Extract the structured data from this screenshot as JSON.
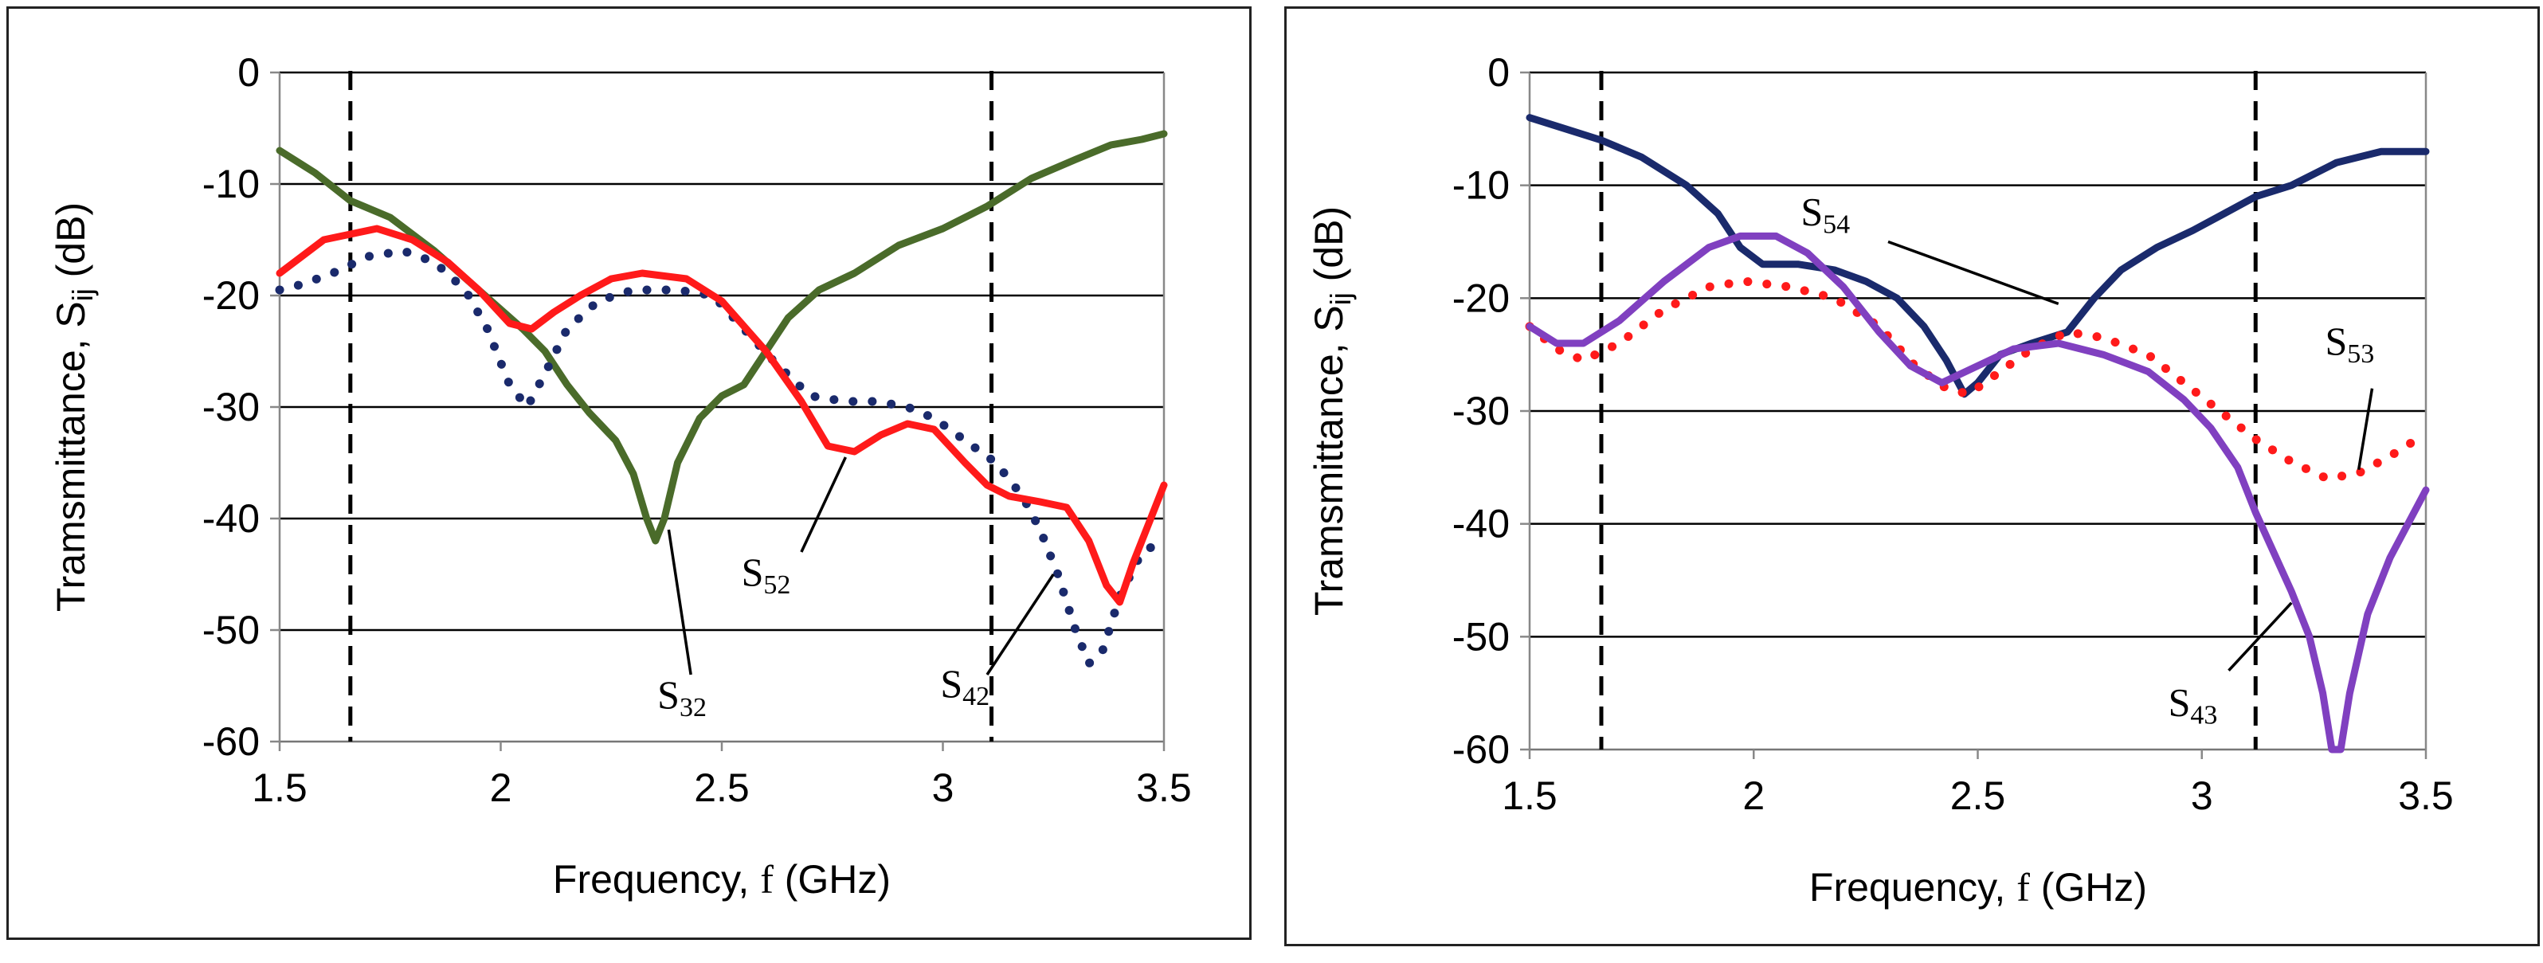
{
  "chart_data": [
    {
      "type": "line",
      "xlabel": "Frequency,  f (GHz)",
      "xlabel_prefix": "Frequency,  ",
      "xlabel_var": "f",
      "xlabel_unit": " (GHz)",
      "ylabel_prefix": "Tramsmittance, S",
      "ylabel_sub": "ij",
      "ylabel_unit": " (dB)",
      "xlim": [
        1.5,
        3.5
      ],
      "ylim": [
        -60,
        0
      ],
      "xticks": [
        1.5,
        2,
        2.5,
        3,
        3.5
      ],
      "xtick_labels": [
        "1.5",
        "2",
        "2.5",
        "3",
        "3.5"
      ],
      "yticks": [
        0,
        -10,
        -20,
        -30,
        -40,
        -50,
        -60
      ],
      "ytick_labels": [
        "0",
        "-10",
        "-20",
        "-30",
        "-40",
        "-50",
        "-60"
      ],
      "grid": "horizontal",
      "vlines": [
        1.66,
        3.11
      ],
      "series": [
        {
          "name": "S32",
          "base": "S",
          "sub": "32",
          "color": "#4a6b2a",
          "style": "solid",
          "points": [
            [
              1.5,
              -7
            ],
            [
              1.58,
              -9
            ],
            [
              1.66,
              -11.5
            ],
            [
              1.75,
              -13
            ],
            [
              1.85,
              -16
            ],
            [
              1.95,
              -19.5
            ],
            [
              2.05,
              -23
            ],
            [
              2.1,
              -25
            ],
            [
              2.15,
              -28
            ],
            [
              2.2,
              -30.5
            ],
            [
              2.26,
              -33
            ],
            [
              2.3,
              -36
            ],
            [
              2.33,
              -40
            ],
            [
              2.35,
              -42
            ],
            [
              2.37,
              -40
            ],
            [
              2.4,
              -35
            ],
            [
              2.45,
              -31
            ],
            [
              2.5,
              -29
            ],
            [
              2.55,
              -28
            ],
            [
              2.6,
              -25
            ],
            [
              2.65,
              -22
            ],
            [
              2.72,
              -19.5
            ],
            [
              2.8,
              -18
            ],
            [
              2.9,
              -15.5
            ],
            [
              3.0,
              -14
            ],
            [
              3.1,
              -12
            ],
            [
              3.2,
              -9.5
            ],
            [
              3.3,
              -7.8
            ],
            [
              3.38,
              -6.5
            ],
            [
              3.45,
              -6
            ],
            [
              3.5,
              -5.5
            ]
          ],
          "label_at": [
            2.41,
            -57
          ],
          "leader": [
            [
              2.43,
              -54
            ],
            [
              2.38,
              -41
            ]
          ]
        },
        {
          "name": "S42",
          "base": "S",
          "sub": "42",
          "color": "#1a2a6c",
          "style": "dotted",
          "points": [
            [
              1.5,
              -19.5
            ],
            [
              1.55,
              -19
            ],
            [
              1.62,
              -18
            ],
            [
              1.7,
              -16.5
            ],
            [
              1.78,
              -16
            ],
            [
              1.85,
              -17
            ],
            [
              1.92,
              -19.5
            ],
            [
              1.97,
              -23
            ],
            [
              2.02,
              -28
            ],
            [
              2.06,
              -30
            ],
            [
              2.1,
              -27
            ],
            [
              2.15,
              -23
            ],
            [
              2.22,
              -20.5
            ],
            [
              2.3,
              -19.5
            ],
            [
              2.4,
              -19.5
            ],
            [
              2.48,
              -20
            ],
            [
              2.55,
              -23
            ],
            [
              2.62,
              -26
            ],
            [
              2.7,
              -29
            ],
            [
              2.78,
              -29.5
            ],
            [
              2.85,
              -29.5
            ],
            [
              2.92,
              -30
            ],
            [
              2.98,
              -31
            ],
            [
              3.05,
              -33
            ],
            [
              3.12,
              -35
            ],
            [
              3.18,
              -38
            ],
            [
              3.22,
              -41
            ],
            [
              3.26,
              -45
            ],
            [
              3.3,
              -50
            ],
            [
              3.33,
              -53
            ],
            [
              3.36,
              -52
            ],
            [
              3.4,
              -47
            ],
            [
              3.45,
              -43
            ],
            [
              3.5,
              -42
            ]
          ],
          "label_at": [
            3.05,
            -56
          ],
          "leader": [
            [
              3.1,
              -54
            ],
            [
              3.25,
              -45
            ]
          ]
        },
        {
          "name": "S52",
          "base": "S",
          "sub": "52",
          "color": "#ff1a1a",
          "style": "solid",
          "points": [
            [
              1.5,
              -18
            ],
            [
              1.55,
              -16.5
            ],
            [
              1.6,
              -15
            ],
            [
              1.66,
              -14.5
            ],
            [
              1.72,
              -14
            ],
            [
              1.8,
              -15
            ],
            [
              1.88,
              -17
            ],
            [
              1.95,
              -19.5
            ],
            [
              2.02,
              -22.5
            ],
            [
              2.07,
              -23
            ],
            [
              2.12,
              -21.5
            ],
            [
              2.18,
              -20
            ],
            [
              2.25,
              -18.5
            ],
            [
              2.32,
              -18
            ],
            [
              2.42,
              -18.5
            ],
            [
              2.5,
              -20.5
            ],
            [
              2.6,
              -25
            ],
            [
              2.68,
              -29.5
            ],
            [
              2.74,
              -33.5
            ],
            [
              2.8,
              -34
            ],
            [
              2.86,
              -32.5
            ],
            [
              2.92,
              -31.5
            ],
            [
              2.98,
              -32
            ],
            [
              3.05,
              -35
            ],
            [
              3.1,
              -37
            ],
            [
              3.15,
              -38
            ],
            [
              3.22,
              -38.5
            ],
            [
              3.28,
              -39
            ],
            [
              3.33,
              -42
            ],
            [
              3.37,
              -46
            ],
            [
              3.4,
              -47.5
            ],
            [
              3.43,
              -44
            ],
            [
              3.47,
              -40
            ],
            [
              3.5,
              -37
            ]
          ],
          "label_at": [
            2.6,
            -46
          ],
          "leader": [
            [
              2.68,
              -43
            ],
            [
              2.78,
              -34.5
            ]
          ]
        }
      ]
    },
    {
      "type": "line",
      "xlabel": "Frequency,  f (GHz)",
      "xlabel_prefix": "Frequency,  ",
      "xlabel_var": "f",
      "xlabel_unit": " (GHz)",
      "ylabel_prefix": "Tramsmittance, S",
      "ylabel_sub": "ij",
      "ylabel_unit": " (dB)",
      "xlim": [
        1.5,
        3.5
      ],
      "ylim": [
        -60,
        0
      ],
      "xticks": [
        1.5,
        2,
        2.5,
        3,
        3.5
      ],
      "xtick_labels": [
        "1.5",
        "2",
        "2.5",
        "3",
        "3.5"
      ],
      "yticks": [
        0,
        -10,
        -20,
        -30,
        -40,
        -50,
        -60
      ],
      "ytick_labels": [
        "0",
        "-10",
        "-20",
        "-30",
        "-40",
        "-50",
        "-60"
      ],
      "grid": "horizontal",
      "vlines": [
        1.66,
        3.12
      ],
      "series": [
        {
          "name": "S54",
          "base": "S",
          "sub": "54",
          "color": "#1a2a6c",
          "style": "solid",
          "points": [
            [
              1.5,
              -4
            ],
            [
              1.58,
              -5
            ],
            [
              1.66,
              -6
            ],
            [
              1.75,
              -7.5
            ],
            [
              1.85,
              -10
            ],
            [
              1.92,
              -12.5
            ],
            [
              1.97,
              -15.5
            ],
            [
              2.02,
              -17
            ],
            [
              2.1,
              -17
            ],
            [
              2.18,
              -17.5
            ],
            [
              2.25,
              -18.5
            ],
            [
              2.32,
              -20
            ],
            [
              2.38,
              -22.5
            ],
            [
              2.43,
              -25.5
            ],
            [
              2.47,
              -28.5
            ],
            [
              2.5,
              -27.5
            ],
            [
              2.55,
              -25
            ],
            [
              2.62,
              -24
            ],
            [
              2.7,
              -23
            ],
            [
              2.76,
              -20
            ],
            [
              2.82,
              -17.5
            ],
            [
              2.9,
              -15.5
            ],
            [
              2.98,
              -14
            ],
            [
              3.05,
              -12.5
            ],
            [
              3.12,
              -11
            ],
            [
              3.2,
              -10
            ],
            [
              3.3,
              -8
            ],
            [
              3.4,
              -7
            ],
            [
              3.5,
              -7
            ]
          ],
          "label_at": [
            2.16,
            -13.5
          ],
          "leader": [
            [
              2.3,
              -15
            ],
            [
              2.68,
              -20.5
            ]
          ]
        },
        {
          "name": "S53",
          "base": "S",
          "sub": "53",
          "color": "#ff1a1a",
          "style": "dotted",
          "points": [
            [
              1.5,
              -22.5
            ],
            [
              1.56,
              -24.5
            ],
            [
              1.62,
              -25.5
            ],
            [
              1.7,
              -24
            ],
            [
              1.8,
              -21
            ],
            [
              1.9,
              -19
            ],
            [
              1.98,
              -18.5
            ],
            [
              2.08,
              -19
            ],
            [
              2.18,
              -20
            ],
            [
              2.28,
              -22.5
            ],
            [
              2.36,
              -26
            ],
            [
              2.43,
              -28
            ],
            [
              2.48,
              -28.5
            ],
            [
              2.55,
              -26.5
            ],
            [
              2.62,
              -24.5
            ],
            [
              2.7,
              -23
            ],
            [
              2.78,
              -23.5
            ],
            [
              2.88,
              -25
            ],
            [
              2.96,
              -27.5
            ],
            [
              3.04,
              -30
            ],
            [
              3.12,
              -32.5
            ],
            [
              3.2,
              -34.5
            ],
            [
              3.28,
              -36
            ],
            [
              3.35,
              -35.5
            ],
            [
              3.42,
              -34
            ],
            [
              3.5,
              -32
            ]
          ],
          "label_at": [
            3.33,
            -25
          ],
          "leader": [
            [
              3.38,
              -28
            ],
            [
              3.35,
              -35.2
            ]
          ]
        },
        {
          "name": "S43",
          "base": "S",
          "sub": "43",
          "color": "#8040c0",
          "style": "solid",
          "points": [
            [
              1.5,
              -22.5
            ],
            [
              1.56,
              -24
            ],
            [
              1.62,
              -24
            ],
            [
              1.7,
              -22
            ],
            [
              1.8,
              -18.5
            ],
            [
              1.9,
              -15.5
            ],
            [
              1.97,
              -14.5
            ],
            [
              2.05,
              -14.5
            ],
            [
              2.12,
              -16
            ],
            [
              2.2,
              -19
            ],
            [
              2.28,
              -23
            ],
            [
              2.35,
              -26
            ],
            [
              2.42,
              -27.5
            ],
            [
              2.5,
              -26
            ],
            [
              2.58,
              -24.5
            ],
            [
              2.68,
              -24
            ],
            [
              2.78,
              -25
            ],
            [
              2.88,
              -26.5
            ],
            [
              2.96,
              -29
            ],
            [
              3.02,
              -31.5
            ],
            [
              3.08,
              -35
            ],
            [
              3.12,
              -39
            ],
            [
              3.16,
              -42.5
            ],
            [
              3.2,
              -46
            ],
            [
              3.24,
              -50
            ],
            [
              3.27,
              -55
            ],
            [
              3.29,
              -60
            ],
            [
              3.31,
              -60
            ],
            [
              3.33,
              -55
            ],
            [
              3.37,
              -48
            ],
            [
              3.42,
              -43
            ],
            [
              3.46,
              -40
            ],
            [
              3.5,
              -37
            ]
          ],
          "label_at": [
            2.98,
            -57
          ],
          "leader": [
            [
              3.06,
              -53
            ],
            [
              3.2,
              -47
            ]
          ]
        }
      ]
    }
  ]
}
